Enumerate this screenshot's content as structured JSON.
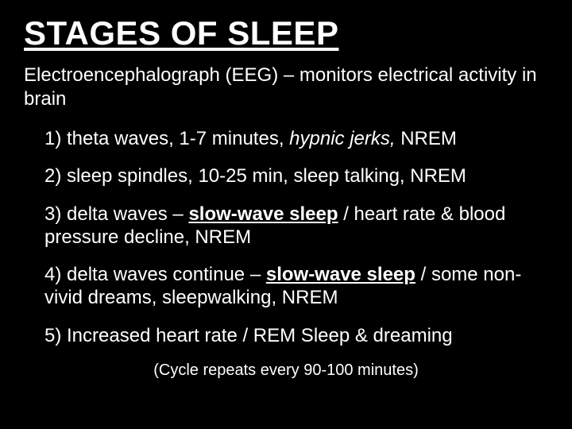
{
  "slide": {
    "background_color": "#000000",
    "text_color": "#ffffff",
    "title": "STAGES OF SLEEP",
    "title_fontsize": 42,
    "title_weight": 700,
    "subtitle_prefix": "Electroencephalograph (EEG) – monitors electrical activity in brain",
    "body_fontsize": 24,
    "items": [
      {
        "n": "1)",
        "t1": " theta waves, 1-7 minutes, ",
        "em": "hypnic jerks,",
        "t2": " NREM"
      },
      {
        "n": "2)",
        "t1": " sleep spindles, 10-25 min, sleep talking, NREM"
      },
      {
        "n": "3)",
        "t1": " delta waves – ",
        "b": "slow-wave sleep",
        "t2": " / heart rate & blood pressure decline, NREM"
      },
      {
        "n": "4)",
        "t1": " delta waves continue – ",
        "b": "slow-wave sleep",
        "t2": " / some non-vivid dreams, sleepwalking, NREM"
      },
      {
        "n": "5)",
        "t1": " Increased heart rate / REM Sleep & dreaming"
      }
    ],
    "footer": "(Cycle repeats every 90-100 minutes)",
    "footer_fontsize": 20
  }
}
